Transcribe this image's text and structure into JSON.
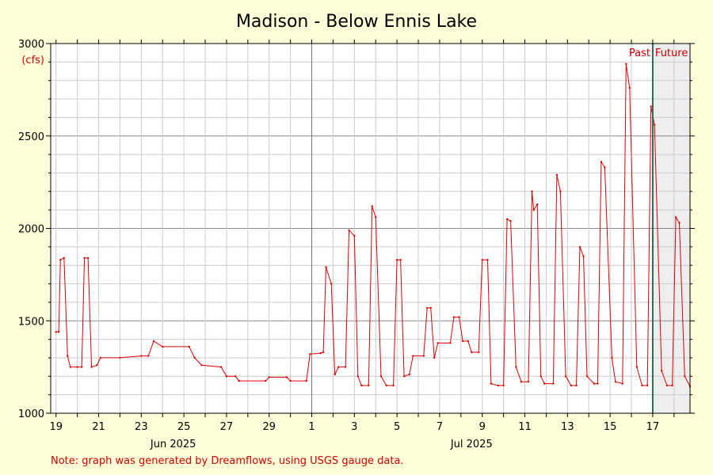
{
  "chart_data": {
    "type": "line",
    "title": "Madison - Below Ennis Lake",
    "ylabel": "(cfs)",
    "ylim": [
      1000,
      3000
    ],
    "y_ticks": [
      1000,
      1500,
      2000,
      2500,
      3000
    ],
    "y_tick_labels": [
      "1000",
      "1500",
      "2000",
      "2500",
      "3000"
    ],
    "x_range_days": [
      "2025-06-18T18:00",
      "2025-07-18T18:00"
    ],
    "x_tick_labels": [
      {
        "date": "2025-06-19",
        "label": "19"
      },
      {
        "date": "2025-06-21",
        "label": "21"
      },
      {
        "date": "2025-06-23",
        "label": "23"
      },
      {
        "date": "2025-06-25",
        "label": "25"
      },
      {
        "date": "2025-06-27",
        "label": "27"
      },
      {
        "date": "2025-06-29",
        "label": "29"
      },
      {
        "date": "2025-07-01",
        "label": "1"
      },
      {
        "date": "2025-07-03",
        "label": "3"
      },
      {
        "date": "2025-07-05",
        "label": "5"
      },
      {
        "date": "2025-07-07",
        "label": "7"
      },
      {
        "date": "2025-07-09",
        "label": "9"
      },
      {
        "date": "2025-07-11",
        "label": "11"
      },
      {
        "date": "2025-07-13",
        "label": "13"
      },
      {
        "date": "2025-07-15",
        "label": "15"
      },
      {
        "date": "2025-07-17",
        "label": "17"
      }
    ],
    "month_labels": [
      {
        "date": "2025-06-24T12:00",
        "label": "Jun 2025"
      },
      {
        "date": "2025-07-08T12:00",
        "label": "Jul 2025"
      }
    ],
    "month_divider": "2025-07-01",
    "now_marker": "2025-07-17",
    "past_label": "Past",
    "future_label": "Future",
    "grid": true,
    "series": [
      {
        "color": "#dd0000",
        "points": [
          [
            "2025-06-19T00:00",
            1440
          ],
          [
            "2025-06-19T03:00",
            1440
          ],
          [
            "2025-06-19T05:00",
            1830
          ],
          [
            "2025-06-19T09:00",
            1840
          ],
          [
            "2025-06-19T13:00",
            1310
          ],
          [
            "2025-06-19T16:00",
            1250
          ],
          [
            "2025-06-20T00:00",
            1250
          ],
          [
            "2025-06-20T05:00",
            1250
          ],
          [
            "2025-06-20T08:00",
            1840
          ],
          [
            "2025-06-20T12:00",
            1840
          ],
          [
            "2025-06-20T16:00",
            1250
          ],
          [
            "2025-06-20T22:00",
            1260
          ],
          [
            "2025-06-21T02:00",
            1300
          ],
          [
            "2025-06-22T00:00",
            1300
          ],
          [
            "2025-06-23T00:00",
            1310
          ],
          [
            "2025-06-23T08:00",
            1310
          ],
          [
            "2025-06-23T14:00",
            1390
          ],
          [
            "2025-06-24T00:00",
            1360
          ],
          [
            "2025-06-25T06:00",
            1360
          ],
          [
            "2025-06-25T12:00",
            1300
          ],
          [
            "2025-06-25T20:00",
            1260
          ],
          [
            "2025-06-26T18:00",
            1250
          ],
          [
            "2025-06-27T00:00",
            1200
          ],
          [
            "2025-06-27T10:00",
            1200
          ],
          [
            "2025-06-27T14:00",
            1175
          ],
          [
            "2025-06-28T20:00",
            1175
          ],
          [
            "2025-06-29T00:00",
            1195
          ],
          [
            "2025-06-29T20:00",
            1195
          ],
          [
            "2025-06-30T00:00",
            1175
          ],
          [
            "2025-06-30T18:00",
            1175
          ],
          [
            "2025-06-30T22:00",
            1320
          ],
          [
            "2025-07-01T10:00",
            1325
          ],
          [
            "2025-07-01T13:00",
            1330
          ],
          [
            "2025-07-01T16:00",
            1790
          ],
          [
            "2025-07-01T22:00",
            1700
          ],
          [
            "2025-07-02T02:00",
            1210
          ],
          [
            "2025-07-02T06:00",
            1250
          ],
          [
            "2025-07-02T14:00",
            1250
          ],
          [
            "2025-07-02T18:00",
            1990
          ],
          [
            "2025-07-03T00:00",
            1960
          ],
          [
            "2025-07-03T04:00",
            1200
          ],
          [
            "2025-07-03T08:00",
            1150
          ],
          [
            "2025-07-03T16:00",
            1150
          ],
          [
            "2025-07-03T20:00",
            2120
          ],
          [
            "2025-07-04T00:00",
            2060
          ],
          [
            "2025-07-04T06:00",
            1200
          ],
          [
            "2025-07-04T12:00",
            1150
          ],
          [
            "2025-07-04T20:00",
            1150
          ],
          [
            "2025-07-05T00:00",
            1830
          ],
          [
            "2025-07-05T04:00",
            1830
          ],
          [
            "2025-07-05T08:00",
            1200
          ],
          [
            "2025-07-05T14:00",
            1210
          ],
          [
            "2025-07-05T18:00",
            1310
          ],
          [
            "2025-07-06T06:00",
            1310
          ],
          [
            "2025-07-06T10:00",
            1570
          ],
          [
            "2025-07-06T14:00",
            1570
          ],
          [
            "2025-07-06T18:00",
            1300
          ],
          [
            "2025-07-06T22:00",
            1380
          ],
          [
            "2025-07-07T12:00",
            1380
          ],
          [
            "2025-07-07T16:00",
            1520
          ],
          [
            "2025-07-07T22:00",
            1520
          ],
          [
            "2025-07-08T02:00",
            1390
          ],
          [
            "2025-07-08T08:00",
            1390
          ],
          [
            "2025-07-08T12:00",
            1330
          ],
          [
            "2025-07-08T20:00",
            1330
          ],
          [
            "2025-07-09T00:00",
            1830
          ],
          [
            "2025-07-09T06:00",
            1830
          ],
          [
            "2025-07-09T10:00",
            1160
          ],
          [
            "2025-07-09T18:00",
            1150
          ],
          [
            "2025-07-10T00:00",
            1150
          ],
          [
            "2025-07-10T04:00",
            2050
          ],
          [
            "2025-07-10T08:00",
            2040
          ],
          [
            "2025-07-10T14:00",
            1250
          ],
          [
            "2025-07-10T20:00",
            1170
          ],
          [
            "2025-07-11T04:00",
            1170
          ],
          [
            "2025-07-11T08:00",
            2200
          ],
          [
            "2025-07-11T10:00",
            2100
          ],
          [
            "2025-07-11T14:00",
            2130
          ],
          [
            "2025-07-11T18:00",
            1200
          ],
          [
            "2025-07-11T22:00",
            1160
          ],
          [
            "2025-07-12T08:00",
            1160
          ],
          [
            "2025-07-12T12:00",
            2290
          ],
          [
            "2025-07-12T16:00",
            2200
          ],
          [
            "2025-07-12T22:00",
            1200
          ],
          [
            "2025-07-13T04:00",
            1150
          ],
          [
            "2025-07-13T10:00",
            1150
          ],
          [
            "2025-07-13T14:00",
            1900
          ],
          [
            "2025-07-13T18:00",
            1850
          ],
          [
            "2025-07-13T22:00",
            1200
          ],
          [
            "2025-07-14T06:00",
            1160
          ],
          [
            "2025-07-14T10:00",
            1160
          ],
          [
            "2025-07-14T14:00",
            2360
          ],
          [
            "2025-07-14T18:00",
            2330
          ],
          [
            "2025-07-15T02:00",
            1300
          ],
          [
            "2025-07-15T06:00",
            1170
          ],
          [
            "2025-07-15T14:00",
            1160
          ],
          [
            "2025-07-15T18:00",
            2890
          ],
          [
            "2025-07-15T22:00",
            2760
          ],
          [
            "2025-07-16T06:00",
            1250
          ],
          [
            "2025-07-16T12:00",
            1150
          ],
          [
            "2025-07-16T18:00",
            1150
          ],
          [
            "2025-07-16T22:00",
            2660
          ],
          [
            "2025-07-17T02:00",
            2560
          ],
          [
            "2025-07-17T10:00",
            1230
          ],
          [
            "2025-07-17T16:00",
            1150
          ],
          [
            "2025-07-17T22:00",
            1150
          ],
          [
            "2025-07-18T02:00",
            2060
          ],
          [
            "2025-07-18T06:00",
            2030
          ],
          [
            "2025-07-18T12:00",
            1200
          ],
          [
            "2025-07-18T18:00",
            1145
          ]
        ]
      }
    ],
    "note": "Note: graph was generated by Dreamflows, using USGS gauge data."
  }
}
